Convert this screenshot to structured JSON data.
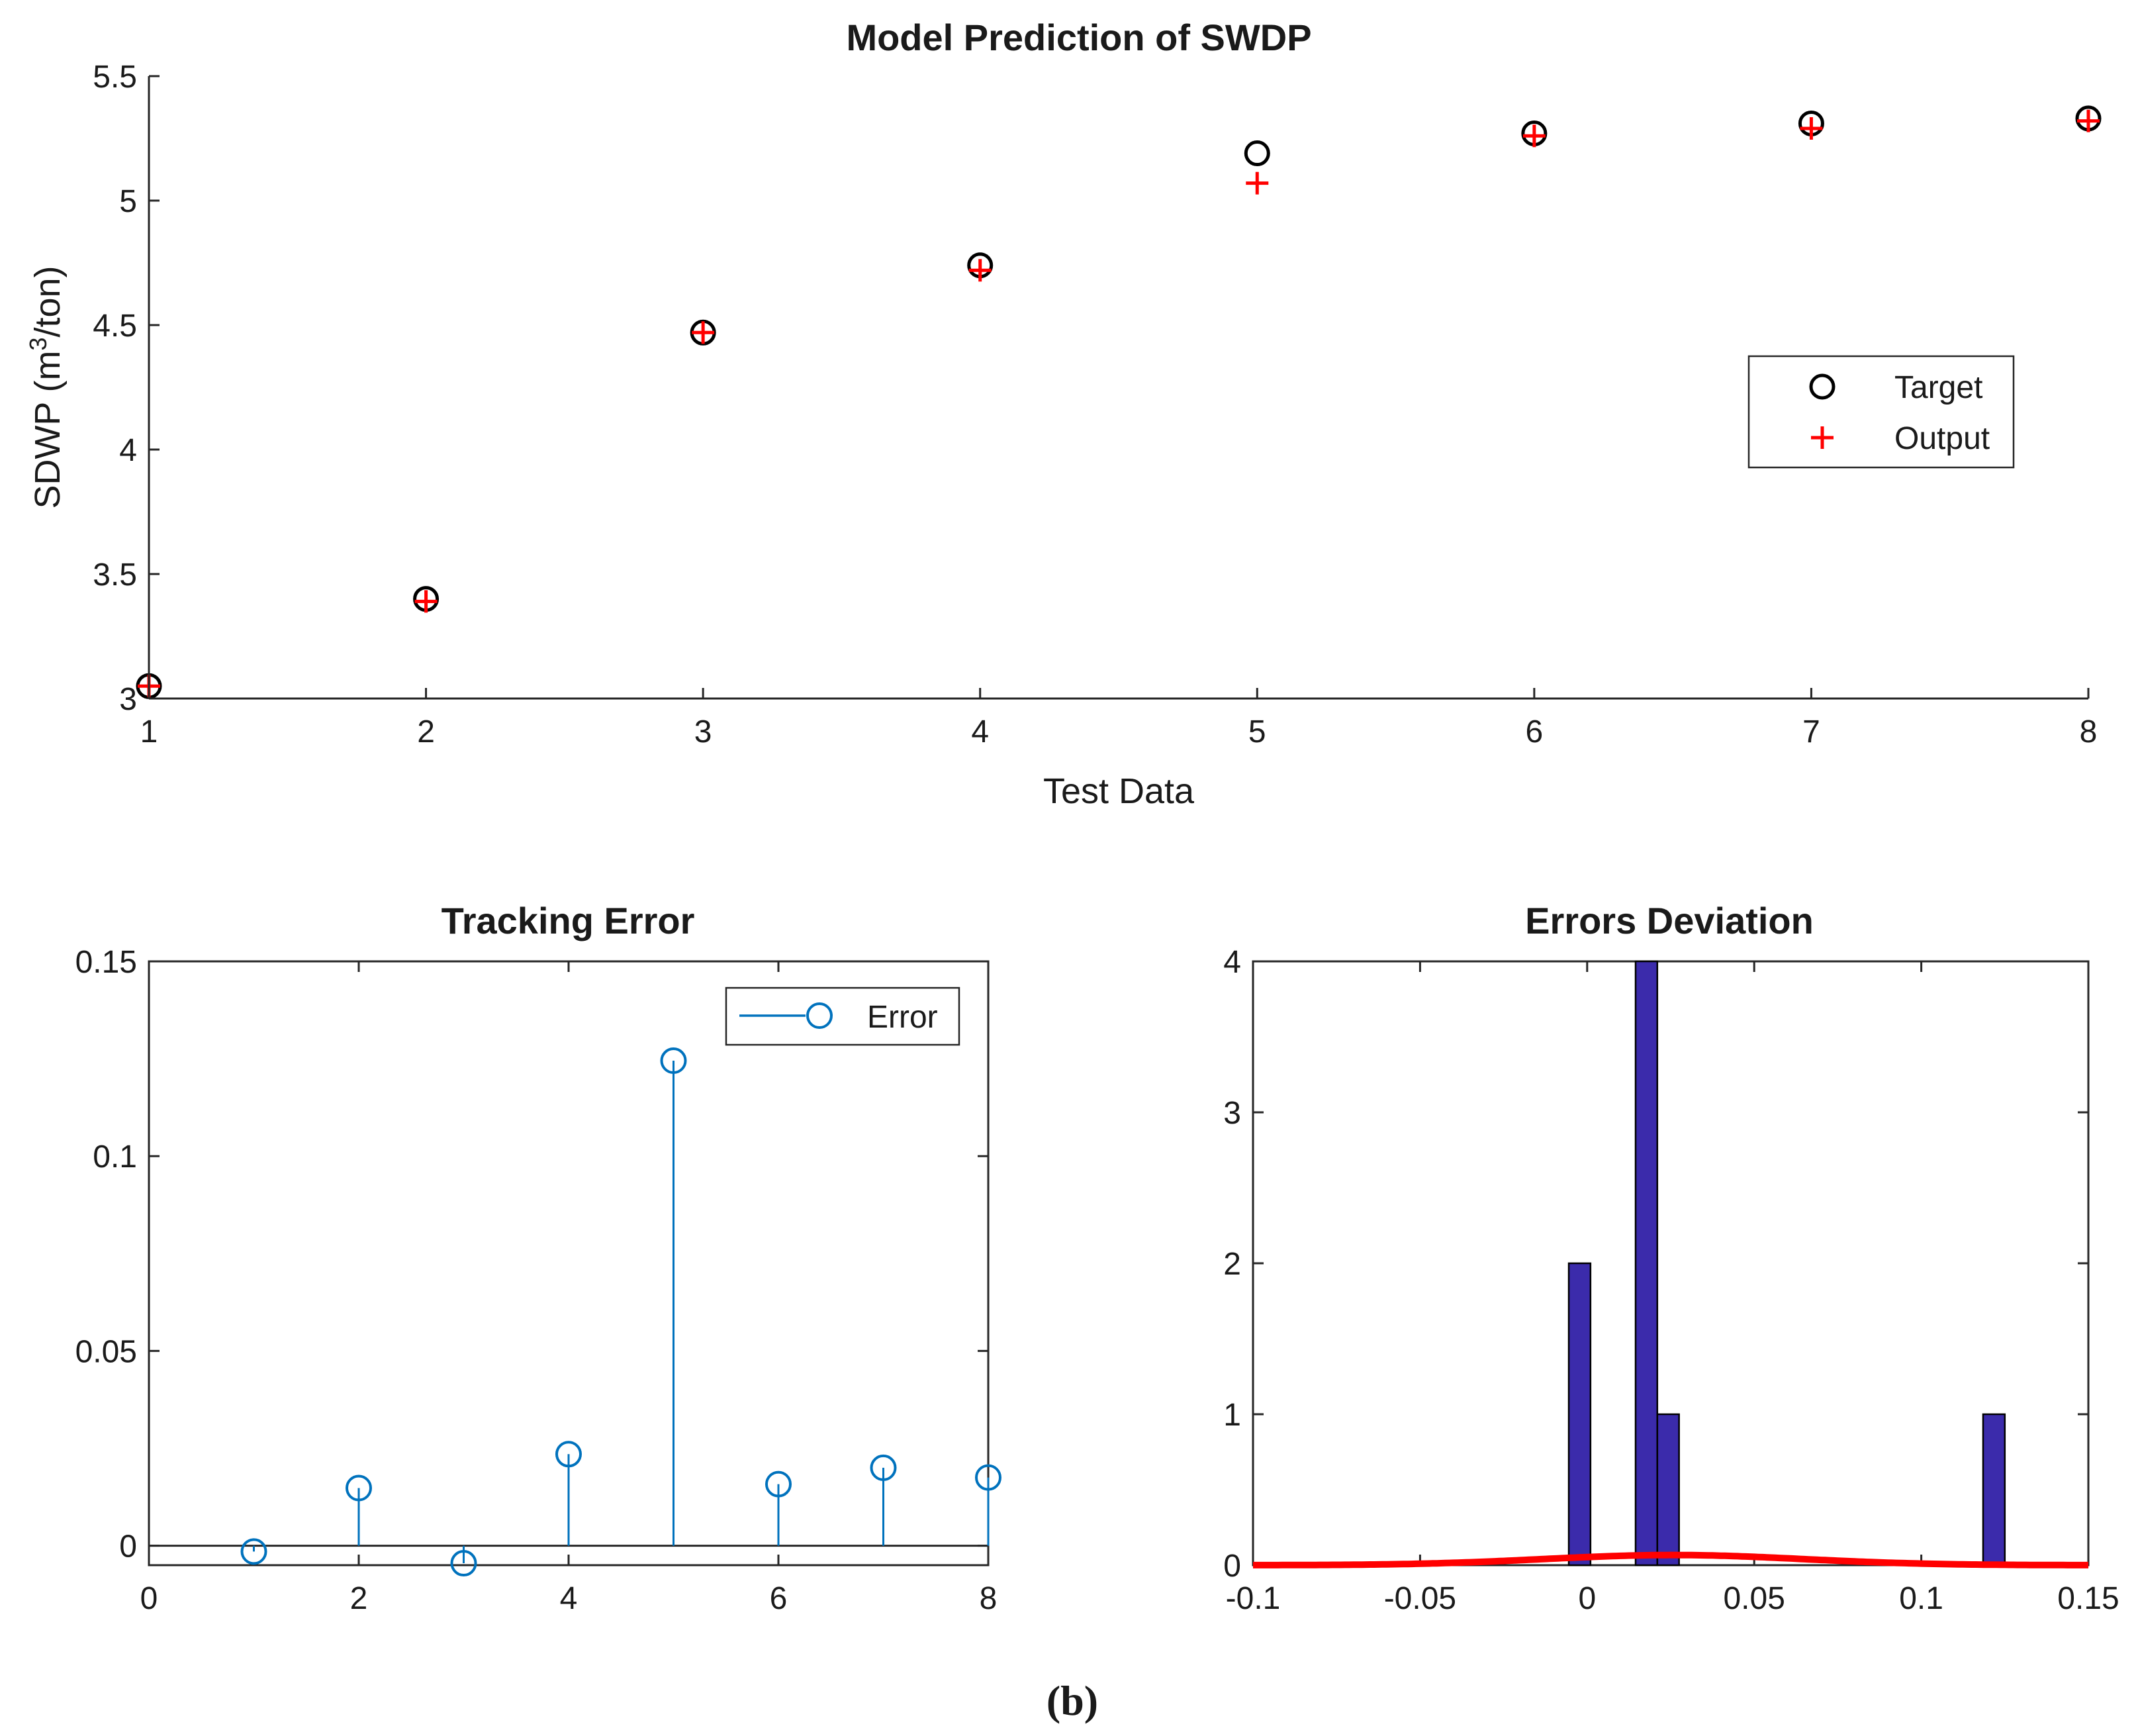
{
  "chart_data": [
    {
      "type": "scatter",
      "title": "Model Prediction of SWDP",
      "xlabel": "Test Data",
      "ylabel_main": "SDWP (m",
      "ylabel_sup": "3",
      "ylabel_tail": "/ton)",
      "xlim": [
        1,
        8
      ],
      "ylim": [
        3,
        5.5
      ],
      "xticks": [
        "1",
        "2",
        "3",
        "4",
        "5",
        "6",
        "7",
        "8"
      ],
      "yticks": [
        "3",
        "3.5",
        "4",
        "4.5",
        "5",
        "5.5"
      ],
      "series": [
        {
          "name": "Target",
          "marker": "circle",
          "color": "#000000",
          "x": [
            1,
            2,
            3,
            4,
            5,
            6,
            7,
            8
          ],
          "y": [
            3.05,
            3.4,
            4.47,
            4.74,
            5.19,
            5.27,
            5.31,
            5.33
          ]
        },
        {
          "name": "Output",
          "marker": "plus",
          "color": "#ff0000",
          "x": [
            1,
            2,
            3,
            4,
            5,
            6,
            7,
            8
          ],
          "y": [
            3.05,
            3.39,
            4.47,
            4.72,
            5.07,
            5.26,
            5.29,
            5.32
          ]
        }
      ],
      "legend_position": "right-center"
    },
    {
      "type": "stem",
      "title": "Tracking Error",
      "xlim": [
        0,
        8
      ],
      "ylim": [
        -0.005,
        0.15
      ],
      "xticks": [
        "0",
        "2",
        "4",
        "6",
        "8"
      ],
      "yticks": [
        "0",
        "0.05",
        "0.1",
        "0.15"
      ],
      "series": [
        {
          "name": "Error",
          "color": "#0072bd",
          "x": [
            1,
            2,
            3,
            4,
            5,
            6,
            7,
            8
          ],
          "y": [
            -0.0015,
            0.0148,
            -0.0045,
            0.0235,
            0.1245,
            0.0158,
            0.02,
            0.0175
          ]
        }
      ],
      "legend_position": "top-right"
    },
    {
      "type": "bar",
      "title": "Errors Deviation",
      "xlim": [
        -0.1,
        0.15
      ],
      "ylim": [
        0,
        4
      ],
      "xticks": [
        "-0.1",
        "-0.05",
        "0",
        "0.05",
        "0.1",
        "0.15"
      ],
      "yticks": [
        "0",
        "1",
        "2",
        "3",
        "4"
      ],
      "bins": [
        {
          "from": -0.0055,
          "to": 0.001,
          "count": 2
        },
        {
          "from": 0.0145,
          "to": 0.021,
          "count": 4
        },
        {
          "from": 0.021,
          "to": 0.0275,
          "count": 1
        },
        {
          "from": 0.1185,
          "to": 0.125,
          "count": 1
        }
      ],
      "bar_color": "#3b2bab",
      "fit": {
        "type": "normal",
        "mean": 0.0258,
        "std": 0.0385,
        "color": "#ff0000"
      }
    }
  ],
  "caption": "(b)"
}
